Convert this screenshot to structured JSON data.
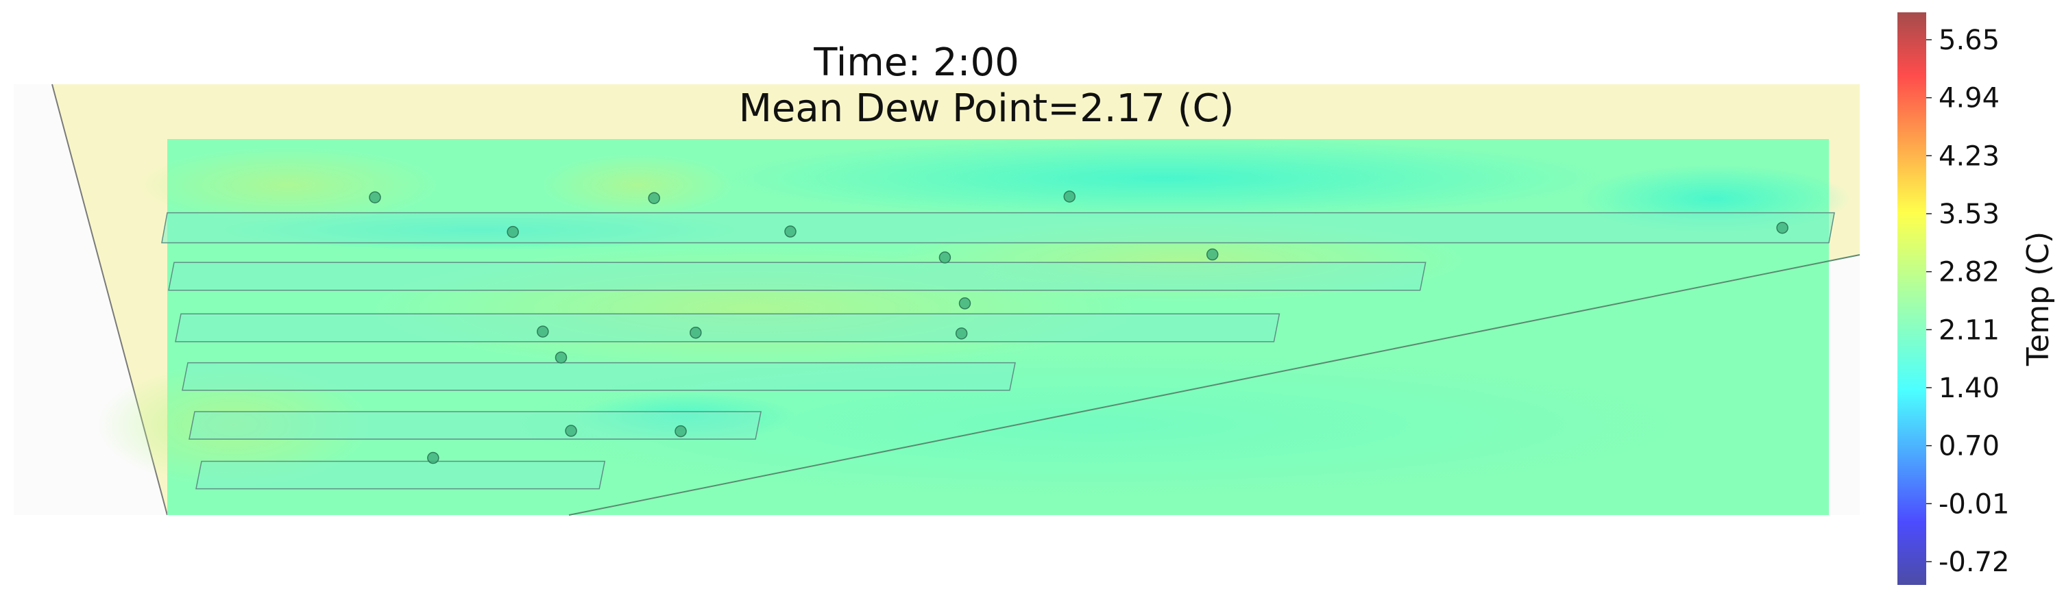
{
  "chart_data": {
    "type": "heatmap",
    "title_lines": [
      "Time: 2:00",
      "Mean Dew Point=2.17 (C)"
    ],
    "colorbar": {
      "label": "Temp (C)",
      "ticks": [
        "5.65",
        "4.94",
        "4.23",
        "3.53",
        "2.82",
        "2.11",
        "1.40",
        "0.70",
        "-0.01",
        "-0.72"
      ],
      "colormap": "jet",
      "alpha": 0.7
    },
    "background_color": "#f8f6c8",
    "field_color": "#88ffb8",
    "sensors": [
      {
        "x": 0.125,
        "y": 0.845
      },
      {
        "x": 0.293,
        "y": 0.843
      },
      {
        "x": 0.543,
        "y": 0.847
      },
      {
        "x": 0.208,
        "y": 0.753
      },
      {
        "x": 0.375,
        "y": 0.754
      },
      {
        "x": 0.972,
        "y": 0.764
      },
      {
        "x": 0.468,
        "y": 0.685
      },
      {
        "x": 0.629,
        "y": 0.693
      },
      {
        "x": 0.48,
        "y": 0.563
      },
      {
        "x": 0.226,
        "y": 0.488
      },
      {
        "x": 0.318,
        "y": 0.485
      },
      {
        "x": 0.478,
        "y": 0.483
      },
      {
        "x": 0.237,
        "y": 0.419
      },
      {
        "x": 0.243,
        "y": 0.224
      },
      {
        "x": 0.309,
        "y": 0.223
      },
      {
        "x": 0.16,
        "y": 0.152
      }
    ],
    "benches": [
      {
        "y_low": 0.724,
        "y_high": 0.804,
        "x_start": 0.0,
        "x_end": 1.0
      },
      {
        "y_low": 0.598,
        "y_high": 0.672,
        "x_start": 0.0,
        "x_end": 0.754
      },
      {
        "y_low": 0.461,
        "y_high": 0.535,
        "x_start": 0.0,
        "x_end": 0.666
      },
      {
        "y_low": 0.332,
        "y_high": 0.405,
        "x_start": 0.0,
        "x_end": 0.507
      },
      {
        "y_low": 0.202,
        "y_high": 0.275,
        "x_start": 0.0,
        "x_end": 0.354
      },
      {
        "y_low": 0.07,
        "y_high": 0.143,
        "x_start": 0.0,
        "x_end": 0.26
      }
    ]
  }
}
